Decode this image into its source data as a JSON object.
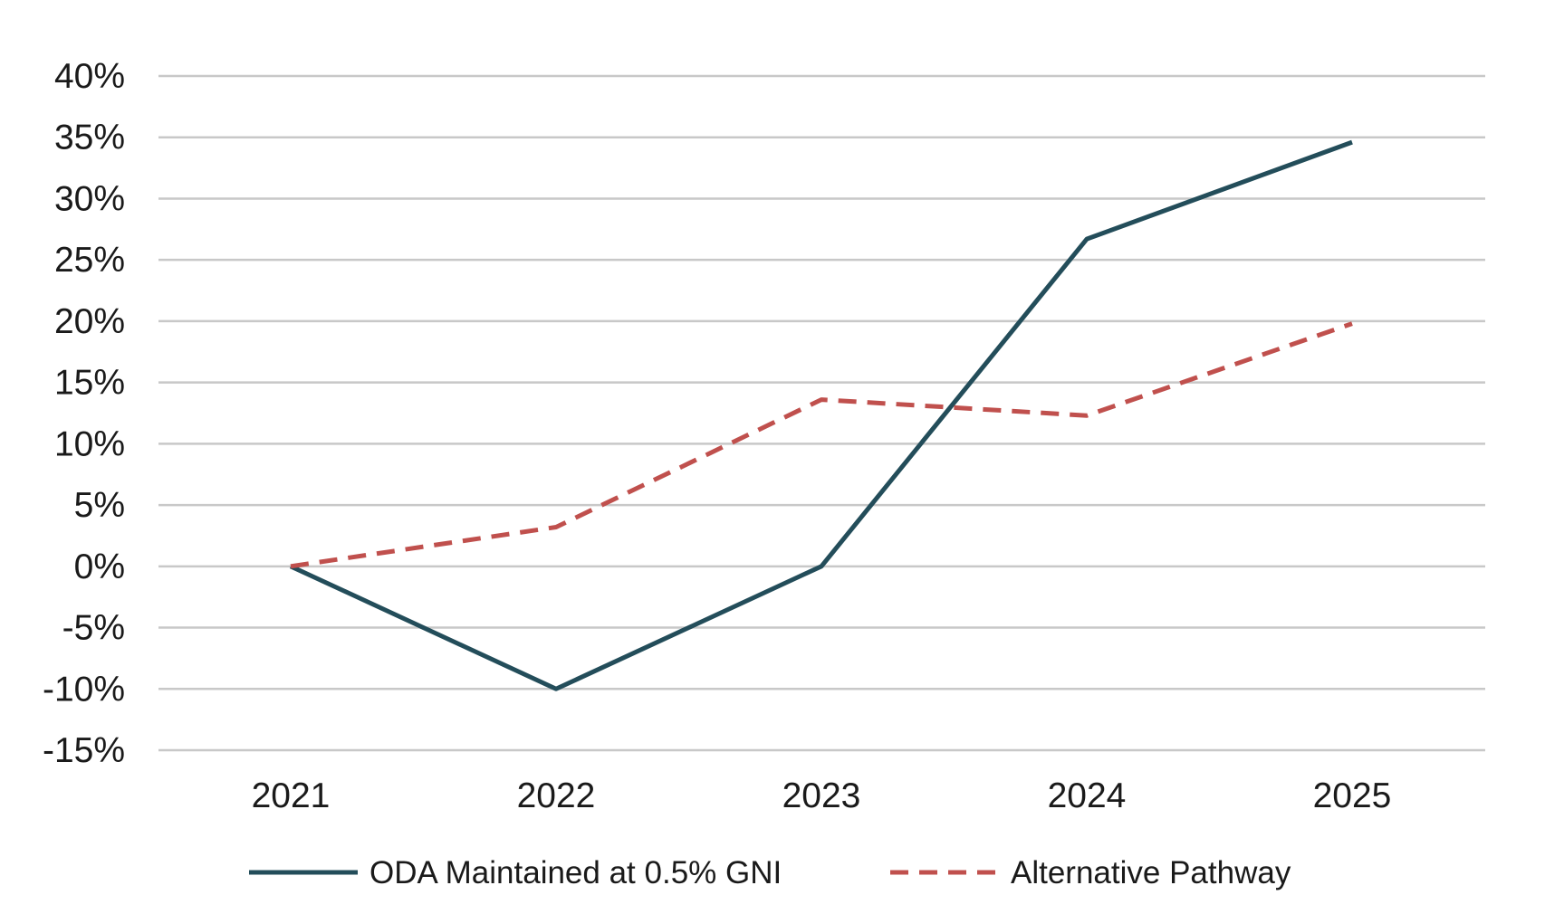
{
  "chart_data": {
    "type": "line",
    "title": "",
    "xlabel": "",
    "ylabel": "",
    "categories": [
      "2021",
      "2022",
      "2023",
      "2024",
      "2025"
    ],
    "y_ticks": [
      "-15%",
      "-10%",
      "-5%",
      "0%",
      "5%",
      "10%",
      "15%",
      "20%",
      "25%",
      "30%",
      "35%",
      "40%"
    ],
    "ylim": [
      -15,
      40
    ],
    "grid": true,
    "legend_position": "bottom",
    "series": [
      {
        "name": "ODA Maintained at 0.5% GNI",
        "values": [
          0,
          -10,
          0,
          26.7,
          34.6
        ],
        "color": "#234d5a",
        "line_style": "solid"
      },
      {
        "name": "Alternative Pathway",
        "values": [
          0,
          3.2,
          13.6,
          12.3,
          19.8
        ],
        "color": "#c0504d",
        "line_style": "dashed"
      }
    ]
  }
}
